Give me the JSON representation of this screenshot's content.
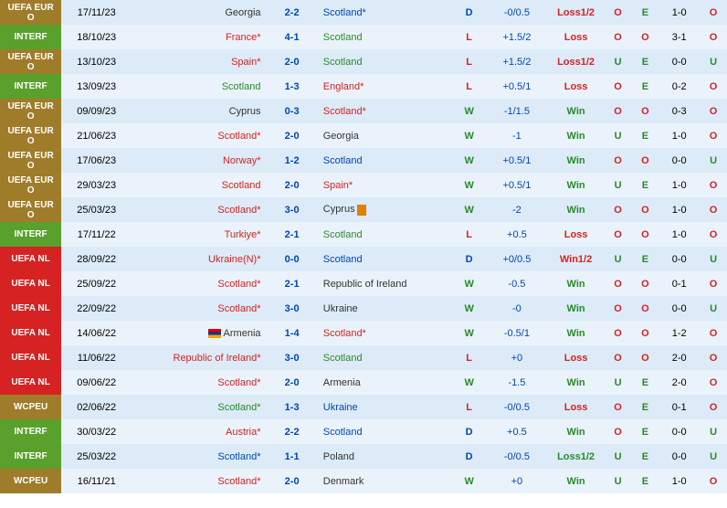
{
  "colors": {
    "row_odd": "#dcebf7",
    "row_even": "#eaf3fb",
    "comp": {
      "UEFA EURO": "#9e7c2a",
      "INTERF": "#5aa02c",
      "UEFA NL": "#d62222",
      "WCPEU": "#9e7c2a"
    },
    "red": "#d62222",
    "green": "#2a8a2a",
    "blue": "#0047b3",
    "black": "#333333"
  },
  "rows": [
    {
      "comp": "UEFA EURO",
      "date": "17/11/23",
      "home": "Georgia",
      "home_c": "black",
      "score": "2-2",
      "away": "Scotland*",
      "away_c": "blue",
      "res": "D",
      "res_c": "blue",
      "hdp": "-0/0.5",
      "hres": "Loss1/2",
      "hres_c": "red",
      "ou": "O",
      "ou_c": "red",
      "eo": "E",
      "eo_c": "green",
      "ht": "1-0",
      "ou2": "O",
      "ou2_c": "red"
    },
    {
      "comp": "INTERF",
      "date": "18/10/23",
      "home": "France*",
      "home_c": "red",
      "score": "4-1",
      "away": "Scotland",
      "away_c": "green",
      "res": "L",
      "res_c": "red",
      "hdp": "+1.5/2",
      "hres": "Loss",
      "hres_c": "red",
      "ou": "O",
      "ou_c": "red",
      "eo": "O",
      "eo_c": "red",
      "ht": "3-1",
      "ou2": "O",
      "ou2_c": "red"
    },
    {
      "comp": "UEFA EURO",
      "date": "13/10/23",
      "home": "Spain*",
      "home_c": "red",
      "score": "2-0",
      "away": "Scotland",
      "away_c": "green",
      "res": "L",
      "res_c": "red",
      "hdp": "+1.5/2",
      "hres": "Loss1/2",
      "hres_c": "red",
      "ou": "U",
      "ou_c": "green",
      "eo": "E",
      "eo_c": "green",
      "ht": "0-0",
      "ou2": "U",
      "ou2_c": "green"
    },
    {
      "comp": "INTERF",
      "date": "13/09/23",
      "home": "Scotland",
      "home_c": "green",
      "score": "1-3",
      "away": "England*",
      "away_c": "red",
      "res": "L",
      "res_c": "red",
      "hdp": "+0.5/1",
      "hres": "Loss",
      "hres_c": "red",
      "ou": "O",
      "ou_c": "red",
      "eo": "E",
      "eo_c": "green",
      "ht": "0-2",
      "ou2": "O",
      "ou2_c": "red"
    },
    {
      "comp": "UEFA EURO",
      "date": "09/09/23",
      "home": "Cyprus",
      "home_c": "black",
      "score": "0-3",
      "away": "Scotland*",
      "away_c": "red",
      "res": "W",
      "res_c": "green",
      "hdp": "-1/1.5",
      "hres": "Win",
      "hres_c": "green",
      "ou": "O",
      "ou_c": "red",
      "eo": "O",
      "eo_c": "red",
      "ht": "0-3",
      "ou2": "O",
      "ou2_c": "red"
    },
    {
      "comp": "UEFA EURO",
      "date": "21/06/23",
      "home": "Scotland*",
      "home_c": "red",
      "score": "2-0",
      "away": "Georgia",
      "away_c": "black",
      "res": "W",
      "res_c": "green",
      "hdp": "-1",
      "hres": "Win",
      "hres_c": "green",
      "ou": "U",
      "ou_c": "green",
      "eo": "E",
      "eo_c": "green",
      "ht": "1-0",
      "ou2": "O",
      "ou2_c": "red"
    },
    {
      "comp": "UEFA EURO",
      "date": "17/06/23",
      "home": "Norway*",
      "home_c": "red",
      "score": "1-2",
      "away": "Scotland",
      "away_c": "blue",
      "res": "W",
      "res_c": "green",
      "hdp": "+0.5/1",
      "hres": "Win",
      "hres_c": "green",
      "ou": "O",
      "ou_c": "red",
      "eo": "O",
      "eo_c": "red",
      "ht": "0-0",
      "ou2": "U",
      "ou2_c": "green"
    },
    {
      "comp": "UEFA EURO",
      "date": "29/03/23",
      "home": "Scotland",
      "home_c": "red",
      "score": "2-0",
      "away": "Spain*",
      "away_c": "red",
      "res": "W",
      "res_c": "green",
      "hdp": "+0.5/1",
      "hres": "Win",
      "hres_c": "green",
      "ou": "U",
      "ou_c": "green",
      "eo": "E",
      "eo_c": "green",
      "ht": "1-0",
      "ou2": "O",
      "ou2_c": "red"
    },
    {
      "comp": "UEFA EURO",
      "date": "25/03/23",
      "home": "Scotland*",
      "home_c": "red",
      "score": "3-0",
      "away": "Cyprus",
      "away_c": "black",
      "away_rc": true,
      "res": "W",
      "res_c": "green",
      "hdp": "-2",
      "hres": "Win",
      "hres_c": "green",
      "ou": "O",
      "ou_c": "red",
      "eo": "O",
      "eo_c": "red",
      "ht": "1-0",
      "ou2": "O",
      "ou2_c": "red"
    },
    {
      "comp": "INTERF",
      "date": "17/11/22",
      "home": "Turkiye*",
      "home_c": "red",
      "score": "2-1",
      "away": "Scotland",
      "away_c": "green",
      "res": "L",
      "res_c": "red",
      "hdp": "+0.5",
      "hres": "Loss",
      "hres_c": "red",
      "ou": "O",
      "ou_c": "red",
      "eo": "O",
      "eo_c": "red",
      "ht": "1-0",
      "ou2": "O",
      "ou2_c": "red"
    },
    {
      "comp": "UEFA NL",
      "date": "28/09/22",
      "home": "Ukraine(N)*",
      "home_c": "red",
      "score": "0-0",
      "away": "Scotland",
      "away_c": "blue",
      "res": "D",
      "res_c": "blue",
      "hdp": "+0/0.5",
      "hres": "Win1/2",
      "hres_c": "red",
      "ou": "U",
      "ou_c": "green",
      "eo": "E",
      "eo_c": "green",
      "ht": "0-0",
      "ou2": "U",
      "ou2_c": "green"
    },
    {
      "comp": "UEFA NL",
      "date": "25/09/22",
      "home": "Scotland*",
      "home_c": "red",
      "score": "2-1",
      "away": "Republic of Ireland",
      "away_c": "black",
      "res": "W",
      "res_c": "green",
      "hdp": "-0.5",
      "hres": "Win",
      "hres_c": "green",
      "ou": "O",
      "ou_c": "red",
      "eo": "O",
      "eo_c": "red",
      "ht": "0-1",
      "ou2": "O",
      "ou2_c": "red"
    },
    {
      "comp": "UEFA NL",
      "date": "22/09/22",
      "home": "Scotland*",
      "home_c": "red",
      "score": "3-0",
      "away": "Ukraine",
      "away_c": "black",
      "res": "W",
      "res_c": "green",
      "hdp": "-0",
      "hres": "Win",
      "hres_c": "green",
      "ou": "O",
      "ou_c": "red",
      "eo": "O",
      "eo_c": "red",
      "ht": "0-0",
      "ou2": "U",
      "ou2_c": "green"
    },
    {
      "comp": "UEFA NL",
      "date": "14/06/22",
      "home": "Armenia",
      "home_c": "black",
      "home_flag": true,
      "score": "1-4",
      "away": "Scotland*",
      "away_c": "red",
      "res": "W",
      "res_c": "green",
      "hdp": "-0.5/1",
      "hres": "Win",
      "hres_c": "green",
      "ou": "O",
      "ou_c": "red",
      "eo": "O",
      "eo_c": "red",
      "ht": "1-2",
      "ou2": "O",
      "ou2_c": "red"
    },
    {
      "comp": "UEFA NL",
      "date": "11/06/22",
      "home": "Republic of Ireland*",
      "home_c": "red",
      "score": "3-0",
      "away": "Scotland",
      "away_c": "green",
      "res": "L",
      "res_c": "red",
      "hdp": "+0",
      "hres": "Loss",
      "hres_c": "red",
      "ou": "O",
      "ou_c": "red",
      "eo": "O",
      "eo_c": "red",
      "ht": "2-0",
      "ou2": "O",
      "ou2_c": "red"
    },
    {
      "comp": "UEFA NL",
      "date": "09/06/22",
      "home": "Scotland*",
      "home_c": "red",
      "score": "2-0",
      "away": "Armenia",
      "away_c": "black",
      "res": "W",
      "res_c": "green",
      "hdp": "-1.5",
      "hres": "Win",
      "hres_c": "green",
      "ou": "U",
      "ou_c": "green",
      "eo": "E",
      "eo_c": "green",
      "ht": "2-0",
      "ou2": "O",
      "ou2_c": "red"
    },
    {
      "comp": "WCPEU",
      "date": "02/06/22",
      "home": "Scotland*",
      "home_c": "green",
      "score": "1-3",
      "away": "Ukraine",
      "away_c": "blue",
      "res": "L",
      "res_c": "red",
      "hdp": "-0/0.5",
      "hres": "Loss",
      "hres_c": "red",
      "ou": "O",
      "ou_c": "red",
      "eo": "E",
      "eo_c": "green",
      "ht": "0-1",
      "ou2": "O",
      "ou2_c": "red"
    },
    {
      "comp": "INTERF",
      "date": "30/03/22",
      "home": "Austria*",
      "home_c": "red",
      "score": "2-2",
      "away": "Scotland",
      "away_c": "blue",
      "res": "D",
      "res_c": "blue",
      "hdp": "+0.5",
      "hres": "Win",
      "hres_c": "green",
      "ou": "O",
      "ou_c": "red",
      "eo": "E",
      "eo_c": "green",
      "ht": "0-0",
      "ou2": "U",
      "ou2_c": "green"
    },
    {
      "comp": "INTERF",
      "date": "25/03/22",
      "home": "Scotland*",
      "home_c": "blue",
      "score": "1-1",
      "away": "Poland",
      "away_c": "black",
      "res": "D",
      "res_c": "blue",
      "hdp": "-0/0.5",
      "hres": "Loss1/2",
      "hres_c": "green",
      "ou": "U",
      "ou_c": "green",
      "eo": "E",
      "eo_c": "green",
      "ht": "0-0",
      "ou2": "U",
      "ou2_c": "green"
    },
    {
      "comp": "WCPEU",
      "date": "16/11/21",
      "home": "Scotland*",
      "home_c": "red",
      "score": "2-0",
      "away": "Denmark",
      "away_c": "black",
      "res": "W",
      "res_c": "green",
      "hdp": "+0",
      "hres": "Win",
      "hres_c": "green",
      "ou": "U",
      "ou_c": "green",
      "eo": "E",
      "eo_c": "green",
      "ht": "1-0",
      "ou2": "O",
      "ou2_c": "red"
    }
  ]
}
